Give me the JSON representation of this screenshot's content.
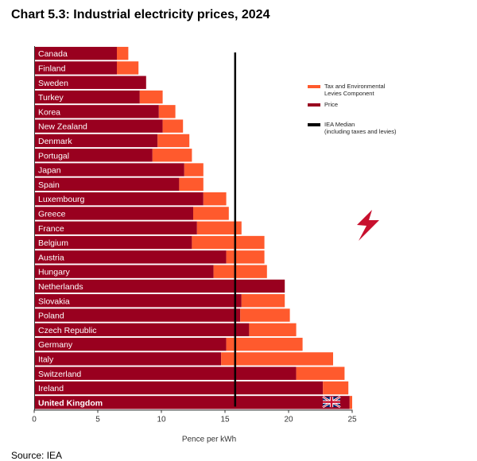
{
  "title": "Chart 5.3: Industrial electricity prices, 2024",
  "footer": "Source: IEA",
  "colors": {
    "price": "#99001f",
    "tax": "#ff5a2d",
    "median": "#000000",
    "bolt": "#c8102e"
  },
  "icons": {
    "bolt": "lightning-bolt-icon",
    "flag": "uk-flag-icon"
  },
  "chart_data": {
    "type": "bar",
    "orientation": "horizontal",
    "stacked": true,
    "categories": [
      "Canada",
      "Finland",
      "Sweden",
      "Turkey",
      "Korea",
      "New Zealand",
      "Denmark",
      "Portugal",
      "Japan",
      "Spain",
      "Luxembourg",
      "Greece",
      "France",
      "Belgium",
      "Austria",
      "Hungary",
      "Netherlands",
      "Slovakia",
      "Poland",
      "Czech Republic",
      "Germany",
      "Italy",
      "Switzerland",
      "Ireland",
      "United Kingdom"
    ],
    "highlight_category": "United Kingdom",
    "series": [
      {
        "name": "Price",
        "values": [
          6.5,
          6.5,
          8.8,
          8.3,
          9.8,
          10.1,
          9.7,
          9.3,
          11.8,
          11.4,
          13.3,
          12.5,
          12.8,
          12.4,
          15.1,
          14.1,
          19.7,
          16.3,
          16.2,
          16.9,
          15.1,
          14.7,
          20.6,
          22.7,
          24.8
        ]
      },
      {
        "name": "Tax and Environmental Levies Component",
        "values": [
          0.9,
          1.7,
          0.0,
          1.8,
          1.3,
          1.6,
          2.5,
          3.1,
          1.5,
          1.9,
          1.8,
          2.8,
          3.5,
          5.7,
          3.0,
          4.2,
          0.0,
          3.4,
          3.9,
          3.7,
          6.0,
          8.8,
          3.8,
          2.0,
          0.2
        ]
      }
    ],
    "median": {
      "name": "IEA Median (including taxes and levies)",
      "value": 15.8
    },
    "legend_labels": {
      "tax": [
        "Tax and Environmental",
        "Levies Component"
      ],
      "price": "Price",
      "median": [
        "IEA Median",
        "(including taxes and levies)"
      ]
    },
    "legend_position": "right",
    "x_ticks": [
      0,
      5,
      10,
      15,
      20,
      25
    ],
    "xlim": [
      0,
      25
    ],
    "xlabel": "Pence per kWh",
    "ylabel": "",
    "grid": false
  }
}
